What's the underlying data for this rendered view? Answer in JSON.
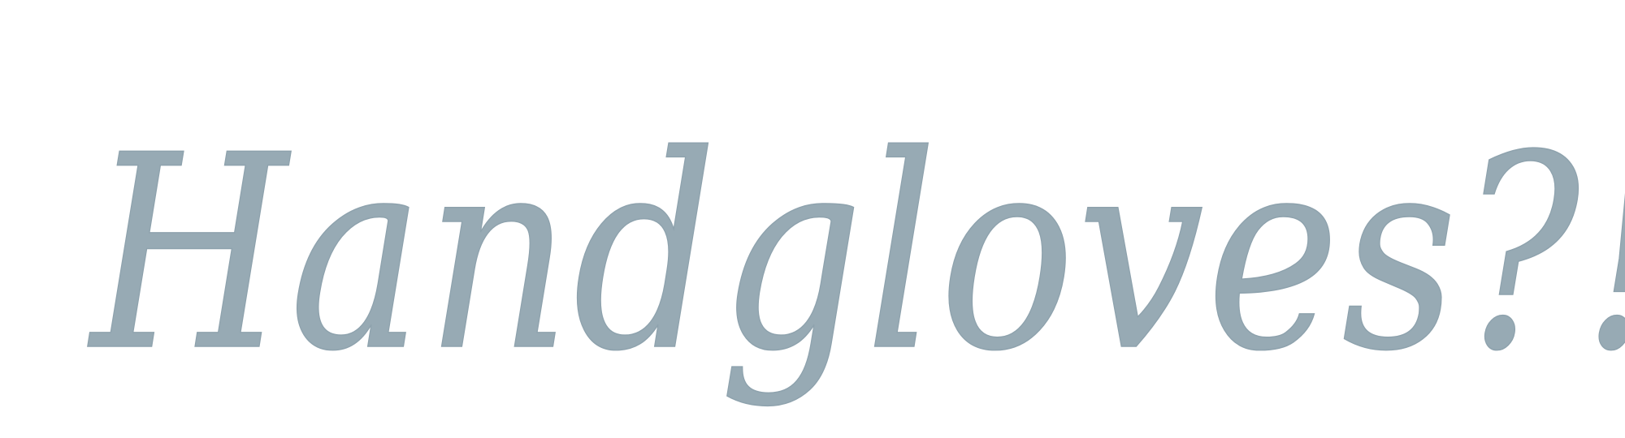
{
  "specimen": {
    "text": "Handgloves?!",
    "color": "#97aab4"
  }
}
